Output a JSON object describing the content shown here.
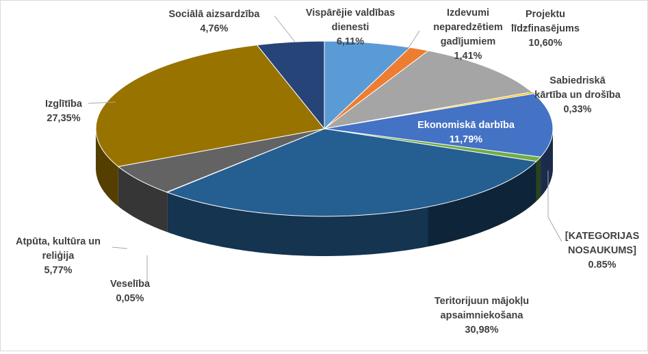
{
  "chart_data": {
    "type": "pie",
    "style": "3d-pie",
    "title": "",
    "start_angle_deg": 0,
    "direction": "clockwise",
    "slices": [
      {
        "label": "Vispārējie valdības dienesti",
        "label_lines": [
          "Vispārējie valdības",
          "dienesti"
        ],
        "value": 6.11,
        "value_label": "6,11%",
        "color": "#5b9bd5"
      },
      {
        "label": "Izdevumi neparedzētiem gadījumiem",
        "label_lines": [
          "Izdevumi",
          "neparedzētiem",
          "gadījumiem"
        ],
        "value": 1.41,
        "value_label": "1,41%",
        "color": "#ed7d31"
      },
      {
        "label": "Projektu līdzfinasējums",
        "label_lines": [
          "Projektu",
          "līdzfinasējums"
        ],
        "value": 10.6,
        "value_label": "10,60%",
        "color": "#a5a5a5"
      },
      {
        "label": "Sabiedriskā kārtība un drošība",
        "label_lines": [
          "Sabiedriskā",
          "kārtība un drošība"
        ],
        "value": 0.33,
        "value_label": "0,33%",
        "color": "#ffc000"
      },
      {
        "label": "Ekonomiskā darbība",
        "label_lines": [
          "Ekonomiskā darbība"
        ],
        "value": 11.79,
        "value_label": "11,79%",
        "color": "#4472c4"
      },
      {
        "label": "[KATEGORIJAS NOSAUKUMS]",
        "label_lines": [
          "[KATEGORIJAS",
          "NOSAUKUMS]"
        ],
        "value": 0.85,
        "value_label": "0.85%",
        "color": "#70ad47"
      },
      {
        "label": "Teritorijuun mājokļu apsaimniekošana",
        "label_lines": [
          "Teritorijuun mājokļu",
          "apsaimniekošana"
        ],
        "value": 30.98,
        "value_label": "30,98%",
        "color": "#255e91"
      },
      {
        "label": "Veselība",
        "label_lines": [
          "Veselība"
        ],
        "value": 0.05,
        "value_label": "0,05%",
        "color": "#9e480e"
      },
      {
        "label": "Atpūta, kultūra un reliģija",
        "label_lines": [
          "Atpūta, kultūra un",
          "reliģija"
        ],
        "value": 5.77,
        "value_label": "5,77%",
        "color": "#636363"
      },
      {
        "label": "Izglītība",
        "label_lines": [
          "Izglītība"
        ],
        "value": 27.35,
        "value_label": "27,35%",
        "color": "#997300"
      },
      {
        "label": "Sociālā aizsardzība",
        "label_lines": [
          "Sociālā aizsardzība"
        ],
        "value": 4.76,
        "value_label": "4,76%",
        "color": "#264478"
      }
    ]
  }
}
